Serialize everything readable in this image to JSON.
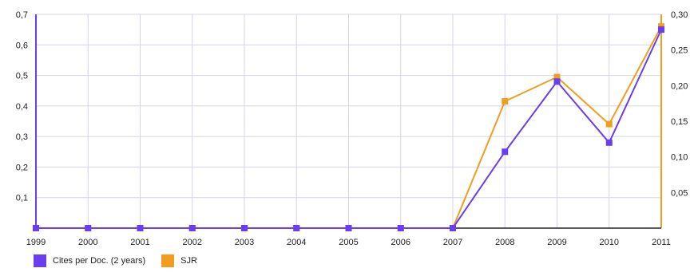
{
  "chart_data": {
    "type": "line",
    "title": "",
    "xlabel": "",
    "x": [
      "1999",
      "2000",
      "2001",
      "2002",
      "2003",
      "2004",
      "2005",
      "2006",
      "2007",
      "2008",
      "2009",
      "2010",
      "2011"
    ],
    "left_axis": {
      "ylim": [
        0,
        0.7
      ],
      "ticks": [
        {
          "v": 0.1,
          "label": "0,1"
        },
        {
          "v": 0.2,
          "label": "0,2"
        },
        {
          "v": 0.3,
          "label": "0,3"
        },
        {
          "v": 0.4,
          "label": "0,4"
        },
        {
          "v": 0.5,
          "label": "0,5"
        },
        {
          "v": 0.6,
          "label": "0,6"
        },
        {
          "v": 0.7,
          "label": "0,7"
        }
      ]
    },
    "right_axis": {
      "ylim": [
        0,
        0.3
      ],
      "ticks": [
        {
          "v": 0.05,
          "label": "0,05"
        },
        {
          "v": 0.1,
          "label": "0,10"
        },
        {
          "v": 0.15,
          "label": "0,15"
        },
        {
          "v": 0.2,
          "label": "0,20"
        },
        {
          "v": 0.25,
          "label": "0,25"
        },
        {
          "v": 0.3,
          "label": "0,30"
        }
      ]
    },
    "series": [
      {
        "name": "Cites per Doc. (2 years)",
        "axis": "left",
        "color": "#6a3df0",
        "values": [
          0,
          0,
          0,
          0,
          0,
          0,
          0,
          0,
          0,
          0.25,
          0.48,
          0.28,
          0.65
        ]
      },
      {
        "name": "SJR",
        "axis": "right",
        "color": "#f29d1d",
        "values": [
          0,
          0,
          0,
          0,
          0,
          0,
          0,
          0,
          0,
          0.178,
          0.212,
          0.146,
          0.283
        ]
      }
    ],
    "grid": true,
    "legend": "bottom-left"
  }
}
